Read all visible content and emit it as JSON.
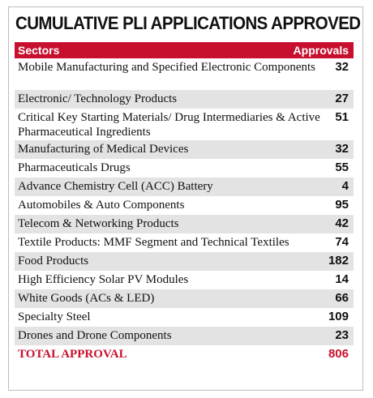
{
  "title": "CUMULATIVE PLI APPLICATIONS APPROVED",
  "chart_data": {
    "type": "table",
    "columns": [
      "Sectors",
      "Approvals"
    ],
    "rows": [
      {
        "sector": "Mobile Manufacturing and Specified Electronic Components",
        "approvals": "32"
      },
      {
        "sector": "Electronic/ Technology Products",
        "approvals": "27"
      },
      {
        "sector": "Critical Key Starting Materials/ Drug Intermediaries & Active Pharmaceutical Ingredients",
        "approvals": "51"
      },
      {
        "sector": "Manufacturing of Medical Devices",
        "approvals": "32"
      },
      {
        "sector": "Pharmaceuticals Drugs",
        "approvals": "55"
      },
      {
        "sector": "Advance Chemistry Cell (ACC) Battery",
        "approvals": "4"
      },
      {
        "sector": "Automobiles & Auto Components",
        "approvals": "95"
      },
      {
        "sector": "Telecom & Networking Products",
        "approvals": "42"
      },
      {
        "sector": "Textile Products: MMF Segment and Technical Textiles",
        "approvals": "74"
      },
      {
        "sector": "Food Products",
        "approvals": "182"
      },
      {
        "sector": "High Efficiency Solar PV Modules",
        "approvals": "14"
      },
      {
        "sector": "White Goods (ACs & LED)",
        "approvals": "66"
      },
      {
        "sector": "Specialty Steel",
        "approvals": "109"
      },
      {
        "sector": "Drones and Drone Components",
        "approvals": "23"
      }
    ],
    "total": {
      "label": "TOTAL APPROVAL",
      "value": "806"
    },
    "header_color": "#c8102e",
    "stripe_color": "#e3e3e3"
  }
}
